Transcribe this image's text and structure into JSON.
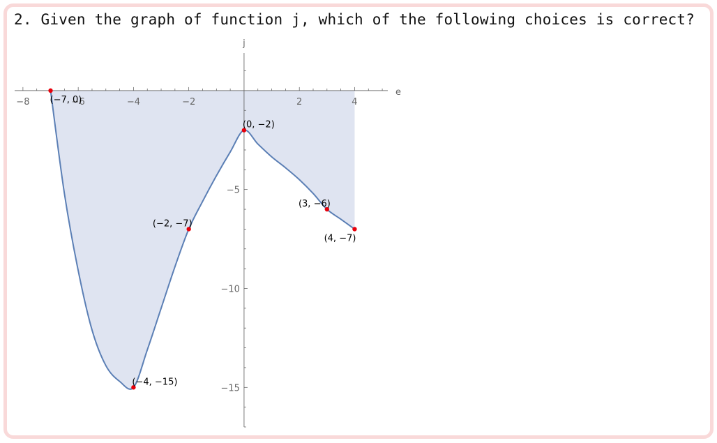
{
  "question": {
    "text": "2. Given the graph of function j, which of the following choices is correct?"
  },
  "colors": {
    "frame_border": "#f9d9d9",
    "curve": "#5b7fb5",
    "fill": "#dfe4f1",
    "point": "#e8000b",
    "axis": "#555555"
  },
  "chart_data": {
    "type": "line",
    "xlabel": "e",
    "ylabel": "j",
    "xlim": [
      -8.3,
      5.2
    ],
    "ylim": [
      -17.0,
      1.9
    ],
    "x_ticks": [
      {
        "value": -8,
        "label": "−8"
      },
      {
        "value": -6,
        "label": "−6"
      },
      {
        "value": -4,
        "label": "−4"
      },
      {
        "value": -2,
        "label": "−2"
      },
      {
        "value": 2,
        "label": "2"
      },
      {
        "value": 4,
        "label": "4"
      }
    ],
    "y_ticks": [
      {
        "value": -5,
        "label": "−5"
      },
      {
        "value": -10,
        "label": "−10"
      },
      {
        "value": -15,
        "label": "−15"
      }
    ],
    "fill_to_axis": true,
    "curve": [
      [
        -7,
        0
      ],
      [
        -6.5,
        -5.2
      ],
      [
        -6,
        -9.1
      ],
      [
        -5.5,
        -12.1
      ],
      [
        -5,
        -13.9
      ],
      [
        -4.5,
        -14.7
      ],
      [
        -4,
        -15
      ],
      [
        -3.5,
        -13.1
      ],
      [
        -3,
        -11.0
      ],
      [
        -2.5,
        -8.9
      ],
      [
        -2,
        -7
      ],
      [
        -1.5,
        -5.6
      ],
      [
        -1,
        -4.3
      ],
      [
        -0.5,
        -3.1
      ],
      [
        0,
        -2
      ],
      [
        0.5,
        -2.7
      ],
      [
        1,
        -3.35
      ],
      [
        1.5,
        -3.9
      ],
      [
        2,
        -4.5
      ],
      [
        2.5,
        -5.2
      ],
      [
        3,
        -6
      ],
      [
        3.5,
        -6.5
      ],
      [
        4,
        -7
      ]
    ],
    "points": [
      {
        "x": -7,
        "y": 0,
        "label": "(−7, 0)",
        "anchor": "below-right"
      },
      {
        "x": 0,
        "y": -2,
        "label": "(0, −2)",
        "anchor": "above-right"
      },
      {
        "x": -2,
        "y": -7,
        "label": "(−2, −7)",
        "anchor": "above-left"
      },
      {
        "x": 3,
        "y": -6,
        "label": "(3, −6)",
        "anchor": "above-left"
      },
      {
        "x": 4,
        "y": -7,
        "label": "(4, −7)",
        "anchor": "below-left"
      },
      {
        "x": -4,
        "y": -15,
        "label": "(−4, −15)",
        "anchor": "above-right"
      }
    ],
    "grid": false,
    "legend": "none"
  }
}
